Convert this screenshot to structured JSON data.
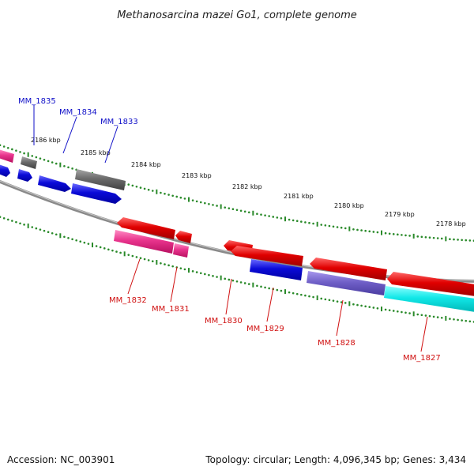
{
  "title": "Methanosarcina mazei Go1, complete genome",
  "footer": {
    "accession": "Accession: NC_003901",
    "summary": "Topology: circular; Length: 4,096,345 bp; Genes: 3,434"
  },
  "scale_labels": [
    "2186 kbp",
    "2185 kbp",
    "2184 kbp",
    "2183 kbp",
    "2182 kbp",
    "2181 kbp",
    "2180 kbp",
    "2179 kbp",
    "2178 kbp"
  ],
  "genes_top_strand": [
    {
      "id": "MM_1835",
      "color": "#1010c8"
    },
    {
      "id": "MM_1834",
      "color": "#1010c8"
    },
    {
      "id": "MM_1833",
      "color": "#1010c8"
    }
  ],
  "genes_bottom_strand": [
    {
      "id": "MM_1832",
      "color": "#d01010"
    },
    {
      "id": "MM_1831",
      "color": "#d01010"
    },
    {
      "id": "MM_1830",
      "color": "#d01010"
    },
    {
      "id": "MM_1829",
      "color": "#d01010"
    },
    {
      "id": "MM_1828",
      "color": "#d01010"
    },
    {
      "id": "MM_1827",
      "color": "#d01010"
    }
  ],
  "colors": {
    "red": "#e00000",
    "blue": "#0b0bd8",
    "gray": "#6b6b6b",
    "pink": "#e8338c",
    "purple": "#7060c8",
    "cyan": "#12e8e8",
    "backbone": "#8a8a8a",
    "scale": "#2a8a2a"
  }
}
